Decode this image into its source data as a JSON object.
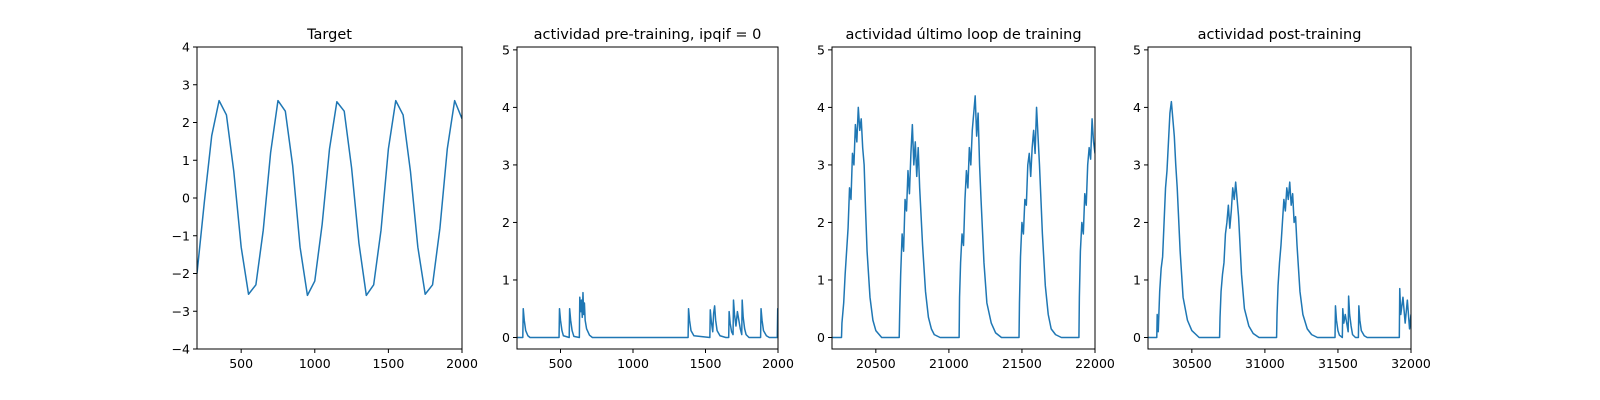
{
  "chart_data": [
    {
      "type": "line",
      "title": "Target",
      "xlabel": "",
      "ylabel": "",
      "xlim": [
        200,
        2000
      ],
      "ylim": [
        -4,
        4
      ],
      "xticks": [
        500,
        1000,
        1500,
        2000
      ],
      "yticks": [
        -4,
        -3,
        -2,
        -1,
        0,
        1,
        2,
        3,
        4
      ],
      "xtick_labels": [
        "500",
        "1000",
        "1500",
        "2000"
      ],
      "ytick_labels": [
        "−4",
        "−3",
        "−2",
        "−1",
        "0",
        "1",
        "2",
        "3",
        "4"
      ],
      "grid": false,
      "series": [
        {
          "color": "#1f77b4",
          "x": [
            200,
            250,
            300,
            350,
            400,
            450,
            500,
            550,
            600,
            650,
            700,
            750,
            800,
            850,
            900,
            950,
            1000,
            1050,
            1100,
            1150,
            1200,
            1250,
            1300,
            1350,
            1400,
            1450,
            1500,
            1550,
            1600,
            1650,
            1700,
            1750,
            1800,
            1850,
            1900,
            1950,
            2000
          ],
          "y": [
            -2.0,
            -0.1,
            1.65,
            2.58,
            2.2,
            0.7,
            -1.3,
            -2.55,
            -2.3,
            -0.85,
            1.2,
            2.58,
            2.3,
            0.85,
            -1.3,
            -2.58,
            -2.2,
            -0.7,
            1.3,
            2.55,
            2.3,
            0.8,
            -1.2,
            -2.58,
            -2.3,
            -0.85,
            1.3,
            2.58,
            2.2,
            0.7,
            -1.3,
            -2.55,
            -2.3,
            -0.8,
            1.3,
            2.58,
            2.1
          ]
        }
      ]
    },
    {
      "type": "line",
      "title": "actividad pre-training, ipqif = 0",
      "xlabel": "",
      "ylabel": "",
      "xlim": [
        200,
        2000
      ],
      "ylim": [
        -0.2,
        5.05
      ],
      "xticks": [
        500,
        1000,
        1500,
        2000
      ],
      "yticks": [
        0,
        1,
        2,
        3,
        4,
        5
      ],
      "xtick_labels": [
        "500",
        "1000",
        "1500",
        "2000"
      ],
      "ytick_labels": [
        "0",
        "1",
        "2",
        "3",
        "4",
        "5"
      ],
      "grid": false,
      "series": [
        {
          "color": "#1f77b4",
          "x": [
            200,
            240,
            243,
            250,
            260,
            275,
            290,
            490,
            493,
            500,
            510,
            520,
            560,
            563,
            570,
            580,
            592,
            630,
            633,
            640,
            645,
            650,
            655,
            660,
            665,
            670,
            680,
            700,
            720,
            1380,
            1383,
            1390,
            1400,
            1420,
            1530,
            1533,
            1540,
            1550,
            1556,
            1563,
            1570,
            1580,
            1600,
            1640,
            1660,
            1663,
            1670,
            1680,
            1690,
            1693,
            1700,
            1710,
            1720,
            1740,
            1750,
            1753,
            1760,
            1770,
            1780,
            1800,
            1860,
            1880,
            1883,
            1890,
            1900,
            1920,
            1940,
            1995,
            1998,
            2000
          ],
          "y": [
            0,
            0,
            0.5,
            0.3,
            0.12,
            0.03,
            0,
            0,
            0.5,
            0.3,
            0.12,
            0.03,
            0,
            0.5,
            0.3,
            0.12,
            0.02,
            0,
            0.7,
            0.45,
            0.65,
            0.35,
            0.78,
            0.4,
            0.6,
            0.3,
            0.15,
            0.04,
            0,
            0,
            0.5,
            0.3,
            0.12,
            0.03,
            0,
            0.48,
            0.28,
            0.1,
            0.42,
            0.55,
            0.3,
            0.12,
            0.03,
            0,
            0,
            0.45,
            0.25,
            0.1,
            0.05,
            0.65,
            0.4,
            0.2,
            0.45,
            0.15,
            0.05,
            0.65,
            0.35,
            0.15,
            0.05,
            0,
            0,
            0,
            0.5,
            0.3,
            0.12,
            0.03,
            0,
            0,
            0.5,
            0.4
          ]
        }
      ]
    },
    {
      "type": "line",
      "title": "actividad último loop de training",
      "xlabel": "",
      "ylabel": "",
      "xlim": [
        20200,
        22000
      ],
      "ylim": [
        -0.2,
        5.05
      ],
      "xticks": [
        20500,
        21000,
        21500,
        22000
      ],
      "yticks": [
        0,
        1,
        2,
        3,
        4,
        5
      ],
      "xtick_labels": [
        "20500",
        "21000",
        "21500",
        "22000"
      ],
      "ytick_labels": [
        "0",
        "1",
        "2",
        "3",
        "4",
        "5"
      ],
      "grid": false,
      "series": [
        {
          "color": "#1f77b4",
          "x": [
            20200,
            20265,
            20268,
            20280,
            20290,
            20300,
            20310,
            20320,
            20330,
            20340,
            20350,
            20360,
            20370,
            20380,
            20390,
            20400,
            20410,
            20420,
            20430,
            20440,
            20460,
            20480,
            20500,
            20540,
            20660,
            20663,
            20670,
            20680,
            20690,
            20700,
            20710,
            20720,
            20730,
            20740,
            20750,
            20760,
            20770,
            20780,
            20790,
            20800,
            20820,
            20840,
            20860,
            20880,
            20900,
            20940,
            21070,
            21073,
            21080,
            21090,
            21100,
            21110,
            21120,
            21130,
            21140,
            21150,
            21160,
            21170,
            21180,
            21190,
            21200,
            21210,
            21220,
            21240,
            21260,
            21290,
            21320,
            21360,
            21480,
            21483,
            21490,
            21500,
            21510,
            21520,
            21530,
            21540,
            21550,
            21560,
            21570,
            21580,
            21590,
            21600,
            21610,
            21620,
            21640,
            21660,
            21680,
            21700,
            21730,
            21770,
            21890,
            21893,
            21900,
            21910,
            21920,
            21930,
            21940,
            21950,
            21960,
            21970,
            21980,
            21990,
            22000
          ],
          "y": [
            0,
            0,
            0.25,
            0.6,
            1.1,
            1.5,
            1.9,
            2.6,
            2.4,
            3.2,
            3.0,
            3.7,
            3.4,
            4.0,
            3.6,
            3.8,
            3.3,
            3.0,
            2.2,
            1.5,
            0.7,
            0.3,
            0.12,
            0,
            0,
            0.4,
            1.1,
            1.8,
            1.5,
            2.4,
            2.2,
            2.9,
            2.5,
            3.2,
            3.7,
            3.0,
            3.4,
            2.8,
            3.3,
            2.6,
            1.6,
            0.8,
            0.35,
            0.15,
            0.05,
            0,
            0,
            0.7,
            1.3,
            1.8,
            1.6,
            2.4,
            2.9,
            2.6,
            3.3,
            3.0,
            3.6,
            3.9,
            4.2,
            3.5,
            3.9,
            3.0,
            2.4,
            1.3,
            0.6,
            0.25,
            0.08,
            0,
            0,
            0.6,
            1.4,
            2.0,
            1.8,
            2.4,
            2.3,
            3.0,
            3.2,
            2.8,
            3.3,
            3.6,
            3.2,
            4.0,
            3.5,
            3.0,
            1.8,
            0.9,
            0.4,
            0.15,
            0.05,
            0,
            0,
            0.7,
            1.5,
            2.0,
            1.8,
            2.5,
            2.3,
            3.0,
            3.3,
            3.1,
            3.8,
            3.4,
            3.2
          ]
        }
      ]
    },
    {
      "type": "line",
      "title": "actividad post-training",
      "xlabel": "",
      "ylabel": "",
      "xlim": [
        30200,
        32000
      ],
      "ylim": [
        -0.2,
        5.05
      ],
      "xticks": [
        30500,
        31000,
        31500,
        32000
      ],
      "yticks": [
        0,
        1,
        2,
        3,
        4,
        5
      ],
      "xtick_labels": [
        "30500",
        "31000",
        "31500",
        "32000"
      ],
      "ytick_labels": [
        "0",
        "1",
        "2",
        "3",
        "4",
        "5"
      ],
      "grid": false,
      "series": [
        {
          "color": "#1f77b4",
          "x": [
            30200,
            30260,
            30263,
            30270,
            30280,
            30290,
            30300,
            30310,
            30320,
            30330,
            30340,
            30350,
            30360,
            30370,
            30380,
            30390,
            30400,
            30420,
            30440,
            30470,
            30500,
            30550,
            30690,
            30693,
            30700,
            30710,
            30720,
            30730,
            30740,
            30750,
            30760,
            30770,
            30780,
            30790,
            30800,
            30810,
            30820,
            30840,
            30860,
            30890,
            30920,
            30960,
            31080,
            31083,
            31090,
            31100,
            31110,
            31120,
            31130,
            31140,
            31150,
            31160,
            31170,
            31180,
            31190,
            31200,
            31210,
            31220,
            31240,
            31260,
            31290,
            31320,
            31360,
            31480,
            31483,
            31490,
            31500,
            31510,
            31530,
            31533,
            31540,
            31550,
            31570,
            31573,
            31580,
            31590,
            31600,
            31620,
            31640,
            31643,
            31650,
            31660,
            31680,
            31700,
            31920,
            31923,
            31930,
            31945,
            31960,
            31975,
            31990,
            32000
          ],
          "y": [
            0,
            0,
            0.4,
            0.1,
            0.8,
            1.2,
            1.4,
            2.0,
            2.6,
            2.9,
            3.4,
            3.9,
            4.1,
            3.8,
            3.5,
            3.0,
            2.6,
            1.5,
            0.7,
            0.3,
            0.12,
            0,
            0,
            0.35,
            0.8,
            1.1,
            1.3,
            1.8,
            2.0,
            2.3,
            1.9,
            2.2,
            2.6,
            2.4,
            2.7,
            2.4,
            2.1,
            1.1,
            0.5,
            0.2,
            0.07,
            0,
            0,
            0.4,
            0.9,
            1.3,
            1.6,
            2.0,
            2.4,
            2.2,
            2.6,
            2.4,
            2.7,
            2.3,
            2.5,
            2.0,
            2.1,
            1.6,
            0.8,
            0.4,
            0.15,
            0.05,
            0,
            0,
            0.55,
            0.3,
            0.12,
            0.04,
            0,
            0.5,
            0.25,
            0.4,
            0.1,
            0.72,
            0.4,
            0.2,
            0.05,
            0,
            0,
            0.55,
            0.3,
            0.12,
            0.03,
            0,
            0,
            0.85,
            0.4,
            0.7,
            0.25,
            0.65,
            0.15,
            0.4
          ]
        }
      ]
    }
  ]
}
